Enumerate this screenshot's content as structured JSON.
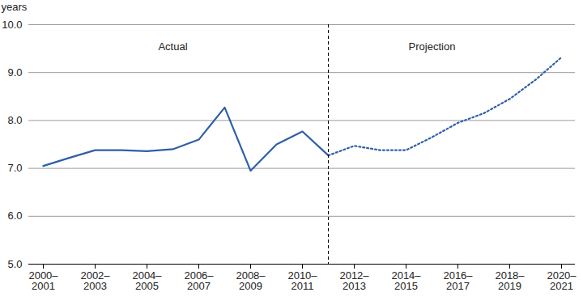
{
  "chart_data": {
    "type": "line",
    "y_label": "years",
    "categories": [
      "2000–2001",
      null,
      "2002–2003",
      null,
      "2004–2005",
      null,
      "2006–2007",
      null,
      "2008–2009",
      null,
      "2010–2011",
      null,
      "2012–2013",
      null,
      "2014–2015",
      null,
      "2016–2017",
      null,
      "2018–2019",
      null,
      "2020–2021"
    ],
    "series": [
      {
        "name": "Actual",
        "color": "#2e5fa8",
        "line_style": "solid",
        "values": [
          7.05,
          7.22,
          7.38,
          7.38,
          7.36,
          7.4,
          7.6,
          8.27,
          6.95,
          7.5,
          7.77,
          7.27,
          null,
          null,
          null,
          null,
          null,
          null,
          null,
          null,
          null
        ]
      },
      {
        "name": "Projection",
        "color": "#2e5fa8",
        "line_style": "dotted",
        "values": [
          null,
          null,
          null,
          null,
          null,
          null,
          null,
          null,
          null,
          null,
          null,
          7.27,
          7.47,
          7.38,
          7.38,
          7.65,
          7.95,
          8.15,
          8.45,
          8.85,
          9.32
        ]
      }
    ],
    "ylim": [
      5,
      10
    ],
    "yticks": [
      5,
      6,
      7,
      8,
      9,
      10
    ],
    "grid": true
  }
}
